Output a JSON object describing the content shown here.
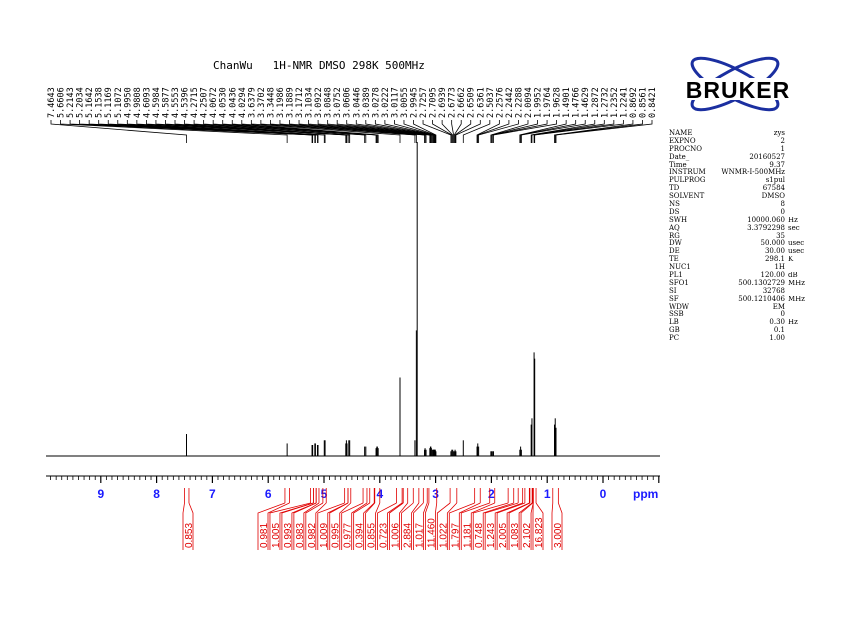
{
  "title": "ChanWu   1H-NMR DMSO 298K 500MHz",
  "logo_text": "BRUKER",
  "colors": {
    "axis_label": "#1a1aff",
    "integral": "#e00000",
    "spectrum": "#000000",
    "logo_blue": "#1b2fa0"
  },
  "parameters": [
    {
      "name": "NAME",
      "value": "zys",
      "unit": ""
    },
    {
      "name": "EXPNO",
      "value": "2",
      "unit": ""
    },
    {
      "name": "PROCNO",
      "value": "1",
      "unit": ""
    },
    {
      "name": "Date_",
      "value": "20160527",
      "unit": ""
    },
    {
      "name": "Time",
      "value": "9.37",
      "unit": ""
    },
    {
      "name": "INSTRUM",
      "value": "WNMR-I-500MHz",
      "unit": ""
    },
    {
      "name": "PULPROG",
      "value": "s1pul",
      "unit": ""
    },
    {
      "name": "TD",
      "value": "67584",
      "unit": ""
    },
    {
      "name": "SOLVENT",
      "value": "DMSO",
      "unit": ""
    },
    {
      "name": "NS",
      "value": "8",
      "unit": ""
    },
    {
      "name": "DS",
      "value": "0",
      "unit": ""
    },
    {
      "name": "SWH",
      "value": "10000.060",
      "unit": "Hz"
    },
    {
      "name": "AQ",
      "value": "3.3792298",
      "unit": "sec"
    },
    {
      "name": "RG",
      "value": "35",
      "unit": ""
    },
    {
      "name": "DW",
      "value": "50.000",
      "unit": "usec"
    },
    {
      "name": "DE",
      "value": "30.00",
      "unit": "usec"
    },
    {
      "name": "TE",
      "value": "298.1",
      "unit": "K"
    },
    {
      "name": "NUC1",
      "value": "1H",
      "unit": ""
    },
    {
      "name": "PL1",
      "value": "120.00",
      "unit": "dB"
    },
    {
      "name": "SFO1",
      "value": "500.1302729",
      "unit": "MHz"
    },
    {
      "name": "SI",
      "value": "32768",
      "unit": ""
    },
    {
      "name": "SF",
      "value": "500.1210406",
      "unit": "MHz"
    },
    {
      "name": "WDW",
      "value": "EM",
      "unit": ""
    },
    {
      "name": "SSB",
      "value": "0",
      "unit": ""
    },
    {
      "name": "LB",
      "value": "0.30",
      "unit": "Hz"
    },
    {
      "name": "GB",
      "value": "0.1",
      "unit": ""
    },
    {
      "name": "PC",
      "value": "1.00",
      "unit": ""
    }
  ],
  "chart_data": {
    "type": "line",
    "title": "ChanWu   1H-NMR DMSO 298K 500MHz",
    "xlabel": "ppm",
    "xlim": [
      10.0,
      -1.0
    ],
    "x_ticks": [
      "9",
      "8",
      "7",
      "6",
      "5",
      "4",
      "3",
      "2",
      "1",
      "0"
    ],
    "grid": false,
    "peaks": [
      {
        "ppm": "7.4643",
        "i": 7
      },
      {
        "ppm": "5.6606",
        "i": 4
      },
      {
        "ppm": "5.2143",
        "i": 3.5
      },
      {
        "ppm": "5.2034",
        "i": 3.5
      },
      {
        "ppm": "5.1642",
        "i": 4
      },
      {
        "ppm": "5.1538",
        "i": 4
      },
      {
        "ppm": "5.1169",
        "i": 3.5
      },
      {
        "ppm": "5.1072",
        "i": 3.5
      },
      {
        "ppm": "4.9950",
        "i": 5
      },
      {
        "ppm": "4.9808",
        "i": 5
      },
      {
        "ppm": "4.6093",
        "i": 4
      },
      {
        "ppm": "4.5984",
        "i": 5
      },
      {
        "ppm": "4.5877",
        "i": 4
      },
      {
        "ppm": "4.5553",
        "i": 5
      },
      {
        "ppm": "4.5396",
        "i": 5
      },
      {
        "ppm": "4.2715",
        "i": 3
      },
      {
        "ppm": "4.2507",
        "i": 3
      },
      {
        "ppm": "4.0672",
        "i": 2.5
      },
      {
        "ppm": "4.0530",
        "i": 3
      },
      {
        "ppm": "4.0436",
        "i": 3
      },
      {
        "ppm": "4.0294",
        "i": 2.5
      },
      {
        "ppm": "3.6379",
        "i": 25
      },
      {
        "ppm": "3.3702",
        "i": 5
      },
      {
        "ppm": "3.3448",
        "i": 40
      },
      {
        "ppm": "3.1986",
        "i": 2
      },
      {
        "ppm": "3.1889",
        "i": 2.5
      },
      {
        "ppm": "3.1712",
        "i": 2
      },
      {
        "ppm": "3.1034",
        "i": 2.5
      },
      {
        "ppm": "3.0922",
        "i": 3
      },
      {
        "ppm": "3.0848",
        "i": 3
      },
      {
        "ppm": "3.0752",
        "i": 2.5
      },
      {
        "ppm": "3.0606",
        "i": 2
      },
      {
        "ppm": "3.0446",
        "i": 2
      },
      {
        "ppm": "3.0389",
        "i": 2
      },
      {
        "ppm": "3.0278",
        "i": 2
      },
      {
        "ppm": "3.0222",
        "i": 2
      },
      {
        "ppm": "3.0117",
        "i": 2
      },
      {
        "ppm": "3.0055",
        "i": 2
      },
      {
        "ppm": "2.9945",
        "i": 1.5
      },
      {
        "ppm": "2.7257",
        "i": 1.5
      },
      {
        "ppm": "2.7095",
        "i": 2
      },
      {
        "ppm": "2.6939",
        "i": 2
      },
      {
        "ppm": "2.6773",
        "i": 1.5
      },
      {
        "ppm": "2.6662",
        "i": 1.5
      },
      {
        "ppm": "2.6509",
        "i": 2
      },
      {
        "ppm": "2.6361",
        "i": 1.5
      },
      {
        "ppm": "2.5037",
        "i": 5
      },
      {
        "ppm": "2.2576",
        "i": 3
      },
      {
        "ppm": "2.2442",
        "i": 4
      },
      {
        "ppm": "2.2288",
        "i": 3
      },
      {
        "ppm": "2.0094",
        "i": 1.5
      },
      {
        "ppm": "1.9952",
        "i": 1.5
      },
      {
        "ppm": "1.9764",
        "i": 1.5
      },
      {
        "ppm": "1.9628",
        "i": 1.5
      },
      {
        "ppm": "1.4901",
        "i": 2
      },
      {
        "ppm": "1.4766",
        "i": 3
      },
      {
        "ppm": "1.4629",
        "i": 2
      },
      {
        "ppm": "1.2872",
        "i": 10
      },
      {
        "ppm": "1.2732",
        "i": 12
      },
      {
        "ppm": "1.2352",
        "i": 33
      },
      {
        "ppm": "1.2241",
        "i": 31
      },
      {
        "ppm": "0.8692",
        "i": 10
      },
      {
        "ppm": "0.8561",
        "i": 12
      },
      {
        "ppm": "0.8421",
        "i": 9
      }
    ],
    "unlabeled_peaks": [
      {
        "ppm": 3.33,
        "i": 100
      }
    ],
    "integrals": [
      {
        "value": "0.853",
        "from": 7.5,
        "to": 7.42
      },
      {
        "value": "0.981",
        "from": 5.7,
        "to": 5.62
      },
      {
        "value": "1.005",
        "from": 5.24,
        "to": 5.19
      },
      {
        "value": "0.993",
        "from": 5.19,
        "to": 5.14
      },
      {
        "value": "0.983",
        "from": 5.14,
        "to": 5.09
      },
      {
        "value": "0.982",
        "from": 5.02,
        "to": 4.96
      },
      {
        "value": "1.009",
        "from": 4.63,
        "to": 4.57
      },
      {
        "value": "0.995",
        "from": 4.57,
        "to": 4.52
      },
      {
        "value": "0.977",
        "from": 4.3,
        "to": 4.23
      },
      {
        "value": "0.394",
        "from": 4.18,
        "to": 4.1
      },
      {
        "value": "0.855",
        "from": 4.09,
        "to": 4.0
      },
      {
        "value": "0.723",
        "from": 3.7,
        "to": 3.6
      },
      {
        "value": "1.006",
        "from": 3.58,
        "to": 3.5
      },
      {
        "value": "2.884",
        "from": 3.4,
        "to": 3.3
      },
      {
        "value": "1.017",
        "from": 3.22,
        "to": 3.15
      },
      {
        "value": "11.460",
        "from": 3.12,
        "to": 2.98
      },
      {
        "value": "1.022",
        "from": 2.74,
        "to": 2.62
      },
      {
        "value": "1.797",
        "from": 2.3,
        "to": 2.2
      },
      {
        "value": "1.181",
        "from": 2.03,
        "to": 1.94
      },
      {
        "value": "0.748",
        "from": 1.7,
        "to": 1.6
      },
      {
        "value": "1.243",
        "from": 1.52,
        "to": 1.44
      },
      {
        "value": "2.005",
        "from": 1.4,
        "to": 1.32
      },
      {
        "value": "1.083",
        "from": 1.31,
        "to": 1.27
      },
      {
        "value": "2.102",
        "from": 1.26,
        "to": 1.25
      },
      {
        "value": "16.823",
        "from": 1.25,
        "to": 1.2
      },
      {
        "value": "3.000",
        "from": 0.9,
        "to": 0.8
      }
    ]
  }
}
